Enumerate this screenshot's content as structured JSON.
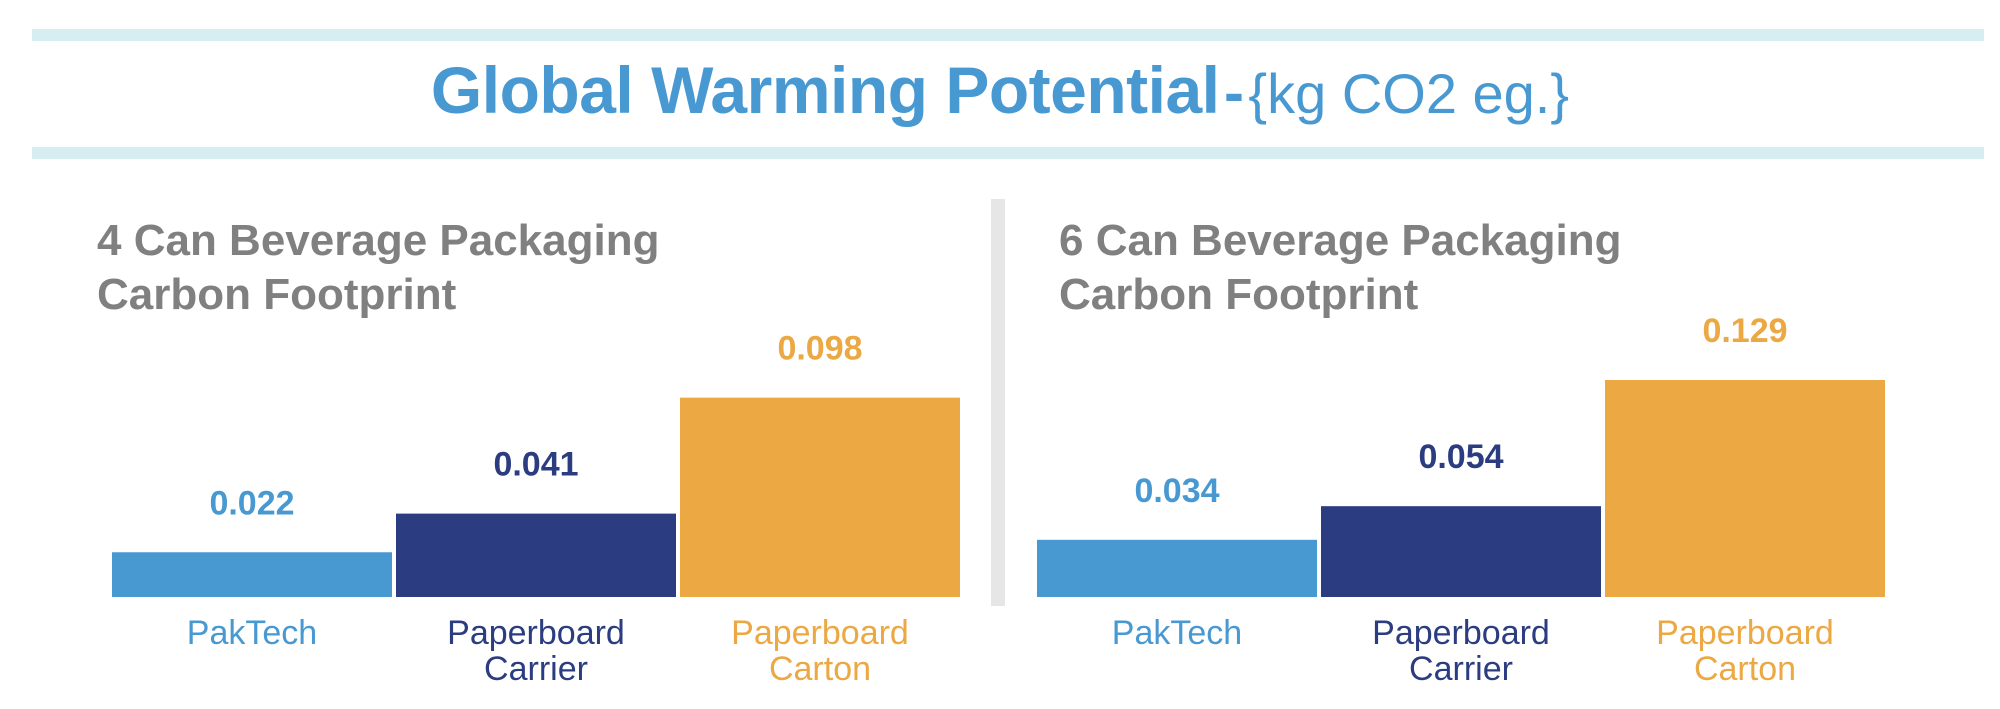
{
  "header": {
    "title": "Global Warming Potential",
    "separator": "-",
    "unit": "{kg CO2 eg.}"
  },
  "colors": {
    "paktech": "#4899d2",
    "paperboard_carrier": "#2b3d80",
    "paperboard_carton": "#eba843",
    "title_bands": "#d6eef1",
    "panel_title_text": "#808080",
    "divider": "#e6e6e6"
  },
  "chart_data": [
    {
      "type": "bar",
      "title": "4 Can Beverage Packaging\nCarbon Footprint",
      "categories": [
        "PakTech",
        "Paperboard\nCarrier",
        "Paperboard\nCarton"
      ],
      "values": [
        0.022,
        0.041,
        0.098
      ],
      "value_labels": [
        "0.022",
        "0.041",
        "0.098"
      ],
      "colors": [
        "#4899d2",
        "#2b3d80",
        "#eba843"
      ],
      "grid": false,
      "legend": "none"
    },
    {
      "type": "bar",
      "title": "6 Can Beverage Packaging\nCarbon Footprint",
      "categories": [
        "PakTech",
        "Paperboard\nCarrier",
        "Paperboard\nCarton"
      ],
      "values": [
        0.034,
        0.054,
        0.129
      ],
      "value_labels": [
        "0.034",
        "0.054",
        "0.129"
      ],
      "colors": [
        "#4899d2",
        "#2b3d80",
        "#eba843"
      ],
      "grid": false,
      "legend": "none"
    }
  ]
}
